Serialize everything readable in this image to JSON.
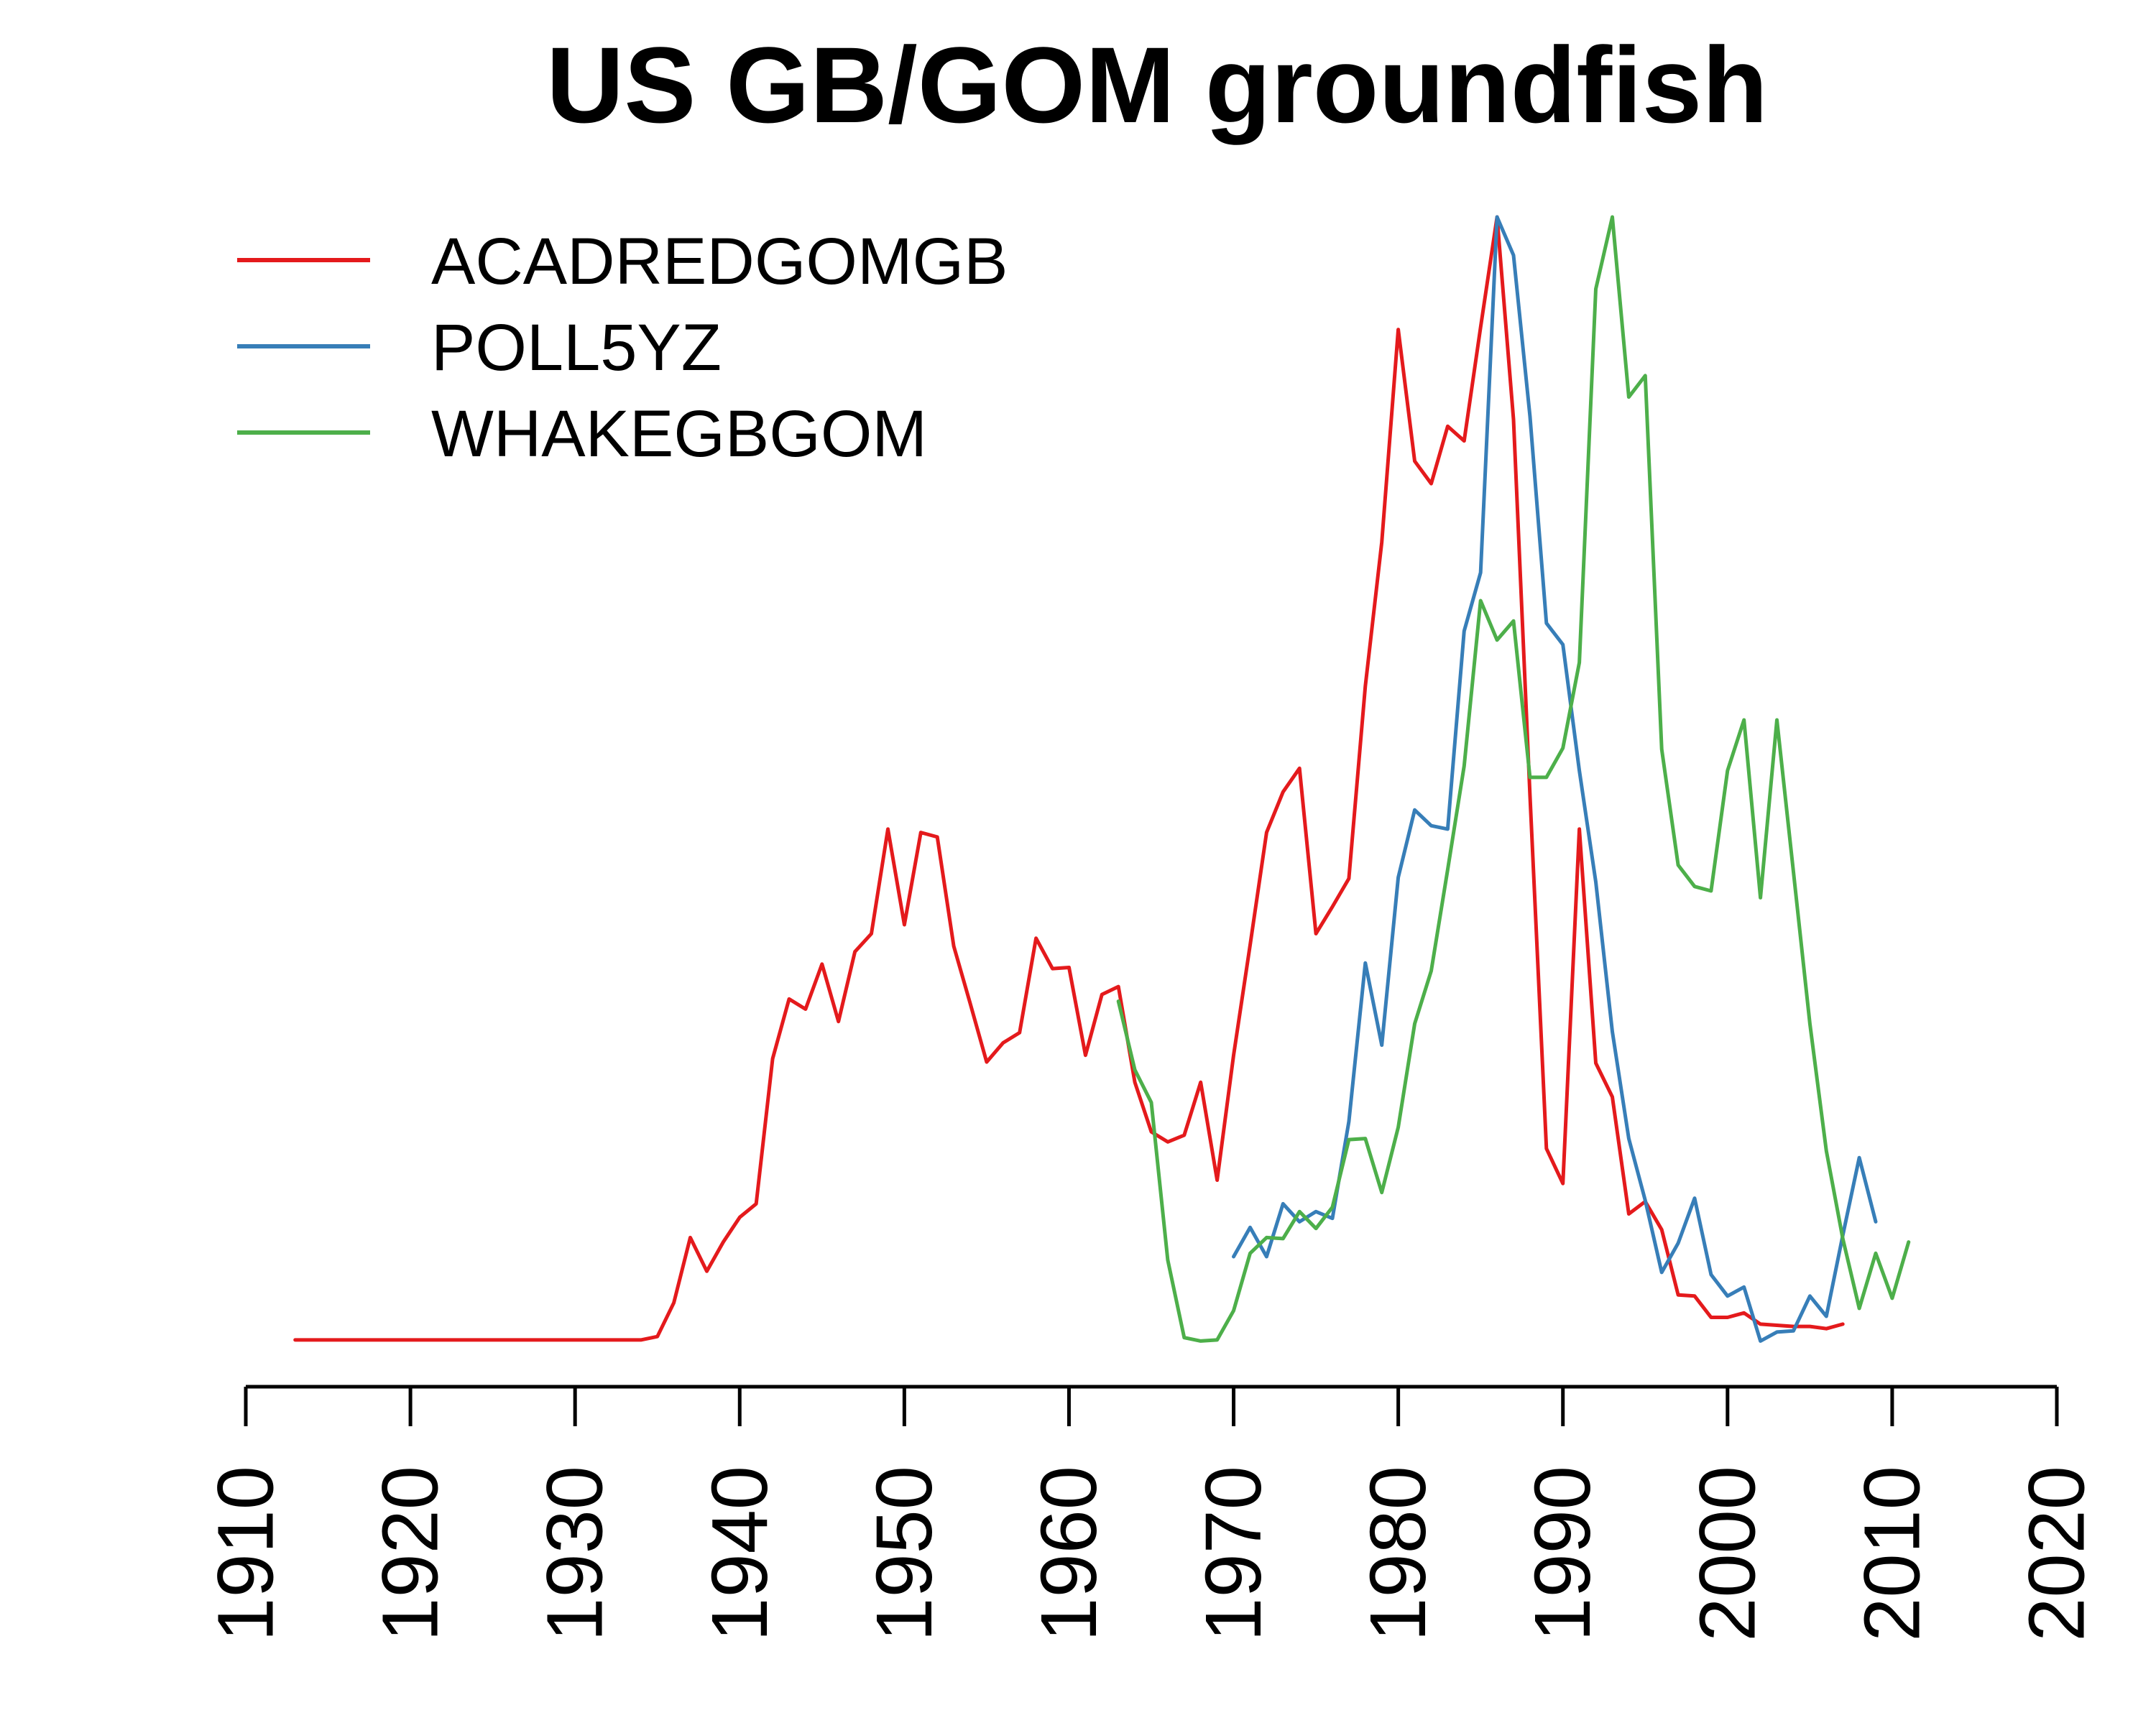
{
  "chart_data": {
    "type": "line",
    "title": "US GB/GOM groundfish",
    "xlabel": "",
    "ylabel": "",
    "xlim": [
      1910,
      2020
    ],
    "ylim": [
      0,
      1
    ],
    "x_ticks": [
      "1910",
      "1920",
      "1930",
      "1940",
      "1950",
      "1960",
      "1970",
      "1980",
      "1990",
      "2000",
      "2010",
      "2020"
    ],
    "grid": false,
    "y_axis_shown": false,
    "legend_position": "top-left",
    "series": [
      {
        "name": "ACADREDGOMGB",
        "color": "#e41a1c",
        "x": [
          1913,
          1914,
          1915,
          1916,
          1917,
          1918,
          1919,
          1920,
          1921,
          1922,
          1923,
          1924,
          1925,
          1926,
          1927,
          1928,
          1929,
          1930,
          1931,
          1932,
          1933,
          1934,
          1935,
          1936,
          1937,
          1938,
          1939,
          1940,
          1941,
          1942,
          1943,
          1944,
          1945,
          1946,
          1947,
          1948,
          1949,
          1950,
          1951,
          1952,
          1953,
          1954,
          1955,
          1956,
          1957,
          1958,
          1959,
          1960,
          1961,
          1962,
          1963,
          1964,
          1965,
          1966,
          1967,
          1968,
          1969,
          1970,
          1971,
          1972,
          1973,
          1974,
          1975,
          1976,
          1977,
          1978,
          1979,
          1980,
          1981,
          1982,
          1983,
          1984,
          1985,
          1986,
          1987,
          1988,
          1989,
          1990,
          1991,
          1992,
          1993,
          1994,
          1995,
          1996,
          1997,
          1998,
          1999,
          2000,
          2001,
          2002,
          2003,
          2004,
          2005,
          2006,
          2007
        ],
        "y": [
          0.002,
          0.002,
          0.002,
          0.002,
          0.002,
          0.002,
          0.002,
          0.002,
          0.002,
          0.002,
          0.002,
          0.002,
          0.002,
          0.002,
          0.002,
          0.002,
          0.002,
          0.002,
          0.002,
          0.002,
          0.002,
          0.002,
          0.005,
          0.035,
          0.093,
          0.063,
          0.089,
          0.111,
          0.123,
          0.252,
          0.305,
          0.296,
          0.336,
          0.285,
          0.347,
          0.363,
          0.456,
          0.371,
          0.453,
          0.449,
          0.352,
          0.301,
          0.249,
          0.266,
          0.275,
          0.359,
          0.332,
          0.333,
          0.255,
          0.309,
          0.316,
          0.231,
          0.187,
          0.178,
          0.184,
          0.231,
          0.144,
          0.255,
          0.353,
          0.453,
          0.489,
          0.51,
          0.363,
          0.387,
          0.412,
          0.583,
          0.711,
          0.9,
          0.783,
          0.763,
          0.814,
          0.801,
          0.902,
          1.0,
          0.82,
          0.486,
          0.172,
          0.141,
          0.456,
          0.248,
          0.218,
          0.114,
          0.125,
          0.1,
          0.042,
          0.041,
          0.022,
          0.022,
          0.026,
          0.016,
          0.015,
          0.014,
          0.014,
          0.012,
          0.016
        ]
      },
      {
        "name": "POLL5YZ",
        "color": "#377eb8",
        "x": [
          1970,
          1971,
          1972,
          1973,
          1974,
          1975,
          1976,
          1977,
          1978,
          1979,
          1980,
          1981,
          1982,
          1983,
          1984,
          1985,
          1986,
          1987,
          1988,
          1989,
          1990,
          1991,
          1992,
          1993,
          1994,
          1995,
          1996,
          1997,
          1998,
          1999,
          2000,
          2001,
          2002,
          2003,
          2004,
          2005,
          2006,
          2007,
          2008,
          2009
        ],
        "y": [
          0.076,
          0.102,
          0.076,
          0.123,
          0.107,
          0.116,
          0.11,
          0.196,
          0.337,
          0.264,
          0.413,
          0.473,
          0.459,
          0.456,
          0.632,
          0.684,
          1.0,
          0.966,
          0.823,
          0.639,
          0.62,
          0.508,
          0.409,
          0.276,
          0.181,
          0.126,
          0.062,
          0.088,
          0.128,
          0.06,
          0.041,
          0.049,
          0.001,
          0.009,
          0.01,
          0.041,
          0.023,
          0.095,
          0.164,
          0.107
        ]
      },
      {
        "name": "WHAKEGBGOM",
        "color": "#4daf4a",
        "x": [
          1963,
          1964,
          1965,
          1966,
          1967,
          1968,
          1969,
          1970,
          1971,
          1972,
          1973,
          1974,
          1975,
          1976,
          1977,
          1978,
          1979,
          1980,
          1981,
          1982,
          1983,
          1984,
          1985,
          1986,
          1987,
          1988,
          1989,
          1990,
          1991,
          1992,
          1993,
          1994,
          1995,
          1996,
          1997,
          1998,
          1999,
          2000,
          2001,
          2002,
          2003,
          2004,
          2005,
          2006,
          2007,
          2008,
          2009,
          2010,
          2011
        ],
        "y": [
          0.303,
          0.242,
          0.213,
          0.073,
          0.004,
          0.001,
          0.002,
          0.028,
          0.079,
          0.093,
          0.092,
          0.116,
          0.101,
          0.12,
          0.18,
          0.181,
          0.133,
          0.191,
          0.283,
          0.33,
          0.42,
          0.512,
          0.659,
          0.624,
          0.641,
          0.502,
          0.502,
          0.528,
          0.604,
          0.936,
          1.0,
          0.84,
          0.859,
          0.527,
          0.424,
          0.405,
          0.401,
          0.508,
          0.553,
          0.395,
          0.553,
          0.418,
          0.283,
          0.17,
          0.092,
          0.03,
          0.079,
          0.039,
          0.089
        ]
      }
    ]
  }
}
